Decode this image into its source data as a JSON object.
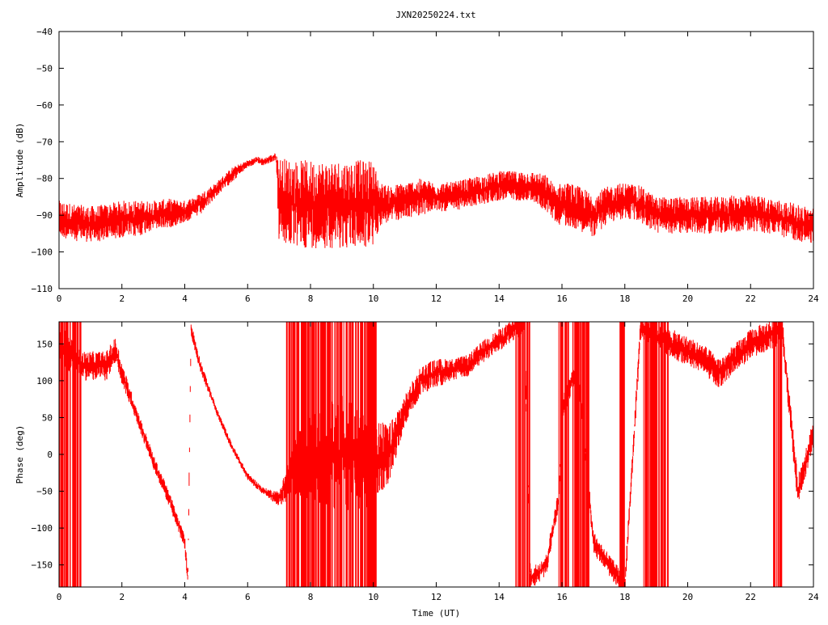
{
  "title": "JXN20250224.txt",
  "chart_data": [
    {
      "type": "line",
      "ylabel": "Amplitude (dB)",
      "xlabel": "",
      "xlim": [
        0,
        24
      ],
      "ylim": [
        -110,
        -40
      ],
      "x_ticks": [
        0,
        2,
        4,
        6,
        8,
        10,
        12,
        14,
        16,
        18,
        20,
        22,
        24
      ],
      "y_ticks": [
        -110,
        -100,
        -90,
        -80,
        -70,
        -60,
        -50,
        -40
      ],
      "x_tick_labels": [
        "0",
        "2",
        "4",
        "6",
        "8",
        "10",
        "12",
        "14",
        "16",
        "18",
        "20",
        "22",
        "24"
      ],
      "y_tick_labels": [
        "−110",
        "−100",
        "−90",
        "−80",
        "−70",
        "−60",
        "−50",
        "−40"
      ],
      "grid": false,
      "color": "#ff0000",
      "series": [
        {
          "x": [
            0,
            0.5,
            1,
            1.5,
            2,
            2.5,
            3,
            3.5,
            4,
            4.5,
            5,
            5.5,
            6,
            6.3,
            6.5,
            6.9,
            7.0,
            7.5,
            8,
            8.5,
            9,
            9.5,
            10,
            10.2,
            10.5,
            11,
            11.5,
            12,
            12.5,
            13,
            13.5,
            14,
            14.5,
            15,
            15.5,
            15.8,
            16,
            16.2,
            16.5,
            17,
            17.5,
            18,
            18.5,
            19,
            19.5,
            20,
            20.5,
            21,
            21.5,
            22,
            22.5,
            23,
            23.5,
            24
          ],
          "y": [
            -91,
            -92,
            -92.5,
            -92,
            -91,
            -91,
            -90,
            -89.5,
            -89,
            -87,
            -83,
            -79,
            -76,
            -75,
            -75.5,
            -74,
            -86,
            -87,
            -87,
            -87,
            -87,
            -87,
            -87,
            -87,
            -87,
            -86,
            -85,
            -85,
            -85,
            -84,
            -83,
            -82,
            -82,
            -82,
            -84,
            -87,
            -87,
            -87,
            -88,
            -90,
            -87,
            -86,
            -87,
            -90,
            -90,
            -90,
            -90,
            -90,
            -89.5,
            -89.5,
            -90,
            -91,
            -92,
            -93
          ],
          "spread": [
            5,
            5,
            5,
            5,
            5,
            5,
            4,
            4,
            3,
            3,
            2,
            2,
            1,
            1,
            1,
            1,
            12,
            12,
            12,
            12,
            12,
            12,
            12,
            6,
            5,
            5,
            5,
            4,
            4,
            4,
            4,
            4,
            4,
            4,
            5,
            5,
            6,
            6,
            6,
            6,
            5,
            5,
            5,
            5,
            5,
            5,
            5,
            5,
            5,
            5,
            5,
            5,
            5,
            5
          ]
        }
      ]
    },
    {
      "type": "line",
      "ylabel": "Phase (deg)",
      "xlabel": "Time (UT)",
      "xlim": [
        0,
        24
      ],
      "ylim": [
        -180,
        180
      ],
      "x_ticks": [
        0,
        2,
        4,
        6,
        8,
        10,
        12,
        14,
        16,
        18,
        20,
        22,
        24
      ],
      "y_ticks": [
        -150,
        -100,
        -50,
        0,
        50,
        100,
        150
      ],
      "x_tick_labels": [
        "0",
        "2",
        "4",
        "6",
        "8",
        "10",
        "12",
        "14",
        "16",
        "18",
        "20",
        "22",
        "24"
      ],
      "y_tick_labels": [
        "−150",
        "−100",
        "−50",
        "0",
        "50",
        "100",
        "150"
      ],
      "grid": false,
      "color": "#ff0000",
      "series": [
        {
          "x": [
            0,
            0.7,
            1,
            1.5,
            1.8,
            2,
            2.5,
            3,
            3.5,
            4,
            4.1,
            4.2,
            4.5,
            5,
            5.5,
            6,
            6.5,
            7,
            7.5,
            8,
            9,
            10,
            10.5,
            11,
            11.5,
            12,
            12.5,
            13,
            13.5,
            14,
            14.5,
            14.8,
            15,
            15.5,
            15.9,
            16,
            16.5,
            17,
            17.5,
            18,
            18.5,
            19,
            19.5,
            20,
            20.5,
            21,
            21.5,
            22,
            22.5,
            23,
            23.5,
            24
          ],
          "y": [
            150,
            120,
            120,
            120,
            140,
            110,
            50,
            -10,
            -60,
            -120,
            -170,
            170,
            120,
            60,
            10,
            -30,
            -50,
            -60,
            -20,
            0,
            0,
            -10,
            0,
            60,
            100,
            110,
            115,
            120,
            140,
            155,
            170,
            180,
            -170,
            -150,
            -60,
            60,
            120,
            -120,
            -150,
            -180,
            170,
            160,
            150,
            140,
            130,
            110,
            130,
            150,
            160,
            170,
            -50,
            30
          ],
          "wrapped_ranges": [
            [
              0,
              0.7
            ],
            [
              7.2,
              10.1
            ],
            [
              14.5,
              15.0
            ],
            [
              15.9,
              16.9
            ],
            [
              17.8,
              18.0
            ],
            [
              18.6,
              19.4
            ],
            [
              22.7,
              23.0
            ]
          ],
          "spread": [
            30,
            20,
            20,
            20,
            20,
            15,
            10,
            10,
            10,
            10,
            10,
            10,
            8,
            5,
            5,
            5,
            5,
            10,
            40,
            60,
            80,
            60,
            40,
            20,
            20,
            20,
            15,
            15,
            15,
            15,
            15,
            15,
            15,
            15,
            15,
            15,
            15,
            15,
            15,
            15,
            15,
            15,
            20,
            20,
            20,
            20,
            20,
            20,
            20,
            20,
            20,
            20
          ]
        }
      ]
    }
  ]
}
